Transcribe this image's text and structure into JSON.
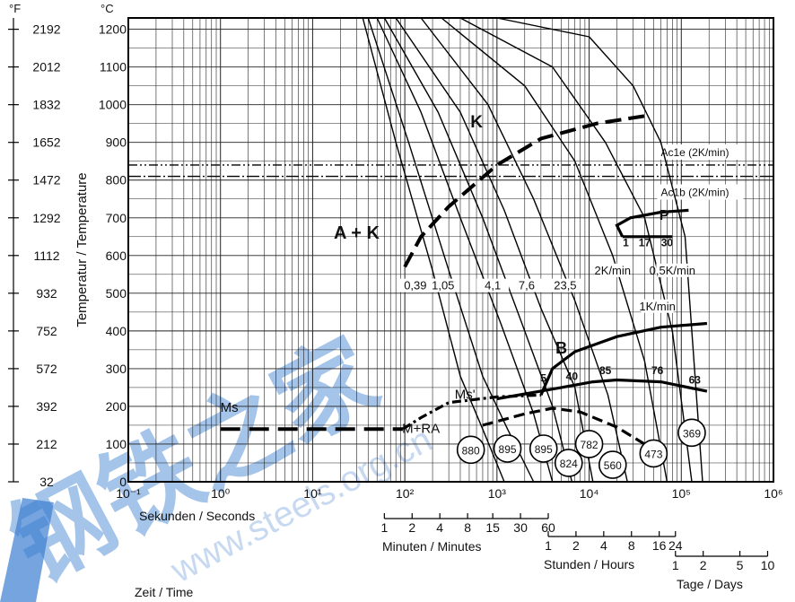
{
  "chart_data": {
    "type": "line",
    "xscale": "log",
    "xlim": [
      0.1,
      1000000
    ],
    "ylim": [
      0,
      1230
    ],
    "y_unit_left": "°F",
    "y_unit_right": "°C",
    "ylabel": "Temperatur / Temperature",
    "x_ticks": [
      "10⁻¹",
      "10⁰",
      "10¹",
      "10²",
      "10³",
      "10⁴",
      "10⁵",
      "10⁶"
    ],
    "y_ticks_c": [
      0,
      100,
      200,
      300,
      400,
      500,
      600,
      700,
      800,
      900,
      1000,
      1100,
      1200
    ],
    "y_ticks_f": [
      "32",
      "212",
      "392",
      "572",
      "752",
      "932",
      "1112",
      "1292",
      "1472",
      "1652",
      "1832",
      "2012",
      "2192"
    ],
    "time_scales": [
      {
        "title": "Sekunden / Seconds",
        "ticks": []
      },
      {
        "title": "Minuten / Minutes",
        "ticks": [
          "1",
          "2",
          "4",
          "8",
          "15",
          "30",
          "60"
        ]
      },
      {
        "title": "Stunden / Hours",
        "ticks": [
          "1",
          "2",
          "4",
          "8",
          "16",
          "24"
        ]
      },
      {
        "title": "Tage / Days",
        "ticks": [
          "1",
          "2",
          "5",
          "10"
        ]
      }
    ],
    "axis_time_label": "Zeit / Time",
    "reference_lines": [
      {
        "name": "Ac1e (2K/min)",
        "y": 840
      },
      {
        "name": "Ac1b (2K/min)",
        "y": 810
      }
    ],
    "regions": [
      "A + K",
      "M+RA",
      "K",
      "P",
      "B",
      "Ms",
      "Ms'"
    ],
    "cooling_rate_labels": [
      "0,39",
      "1,05",
      "4,1",
      "7,6",
      "23,5",
      "2K/min",
      "0,5K/min",
      "1K/min"
    ],
    "phase_percentages": [
      "1",
      "17",
      "30",
      "5",
      "40",
      "85",
      "76",
      "63"
    ],
    "hardness_values": [
      "880",
      "895",
      "895",
      "824",
      "782",
      "560",
      "473",
      "369"
    ],
    "ms_temperature": 140,
    "series": [
      {
        "values": [
          [
            35,
            1230
          ],
          [
            80,
            900
          ],
          [
            200,
            560
          ],
          [
            400,
            280
          ],
          [
            700,
            140
          ],
          [
            1200,
            0
          ]
        ]
      },
      {
        "values": [
          [
            40,
            1230
          ],
          [
            110,
            900
          ],
          [
            300,
            560
          ],
          [
            700,
            280
          ],
          [
            1300,
            140
          ],
          [
            2500,
            0
          ]
        ]
      },
      {
        "values": [
          [
            50,
            1230
          ],
          [
            150,
            980
          ],
          [
            400,
            700
          ],
          [
            1100,
            420
          ],
          [
            2500,
            180
          ],
          [
            4000,
            0
          ]
        ]
      },
      {
        "values": [
          [
            60,
            1230
          ],
          [
            230,
            980
          ],
          [
            700,
            700
          ],
          [
            1800,
            430
          ],
          [
            4000,
            200
          ],
          [
            6500,
            0
          ]
        ]
      },
      {
        "values": [
          [
            80,
            1230
          ],
          [
            400,
            980
          ],
          [
            1200,
            720
          ],
          [
            3000,
            460
          ],
          [
            7000,
            250
          ],
          [
            11000,
            0
          ]
        ]
      },
      {
        "values": [
          [
            150,
            1230
          ],
          [
            800,
            1000
          ],
          [
            2500,
            750
          ],
          [
            7000,
            480
          ],
          [
            16000,
            230
          ],
          [
            26000,
            0
          ]
        ]
      },
      {
        "values": [
          [
            250,
            1230
          ],
          [
            2000,
            1050
          ],
          [
            7000,
            850
          ],
          [
            18000,
            600
          ],
          [
            40000,
            320
          ],
          [
            70000,
            0
          ]
        ]
      },
      {
        "values": [
          [
            400,
            1230
          ],
          [
            4000,
            1100
          ],
          [
            15000,
            900
          ],
          [
            40000,
            700
          ],
          [
            80000,
            400
          ],
          [
            130000,
            0
          ]
        ]
      },
      {
        "values": [
          [
            1000,
            1230
          ],
          [
            10000,
            1180
          ],
          [
            30000,
            1050
          ],
          [
            60000,
            900
          ],
          [
            110000,
            650
          ],
          [
            170000,
            0
          ]
        ]
      }
    ]
  }
}
